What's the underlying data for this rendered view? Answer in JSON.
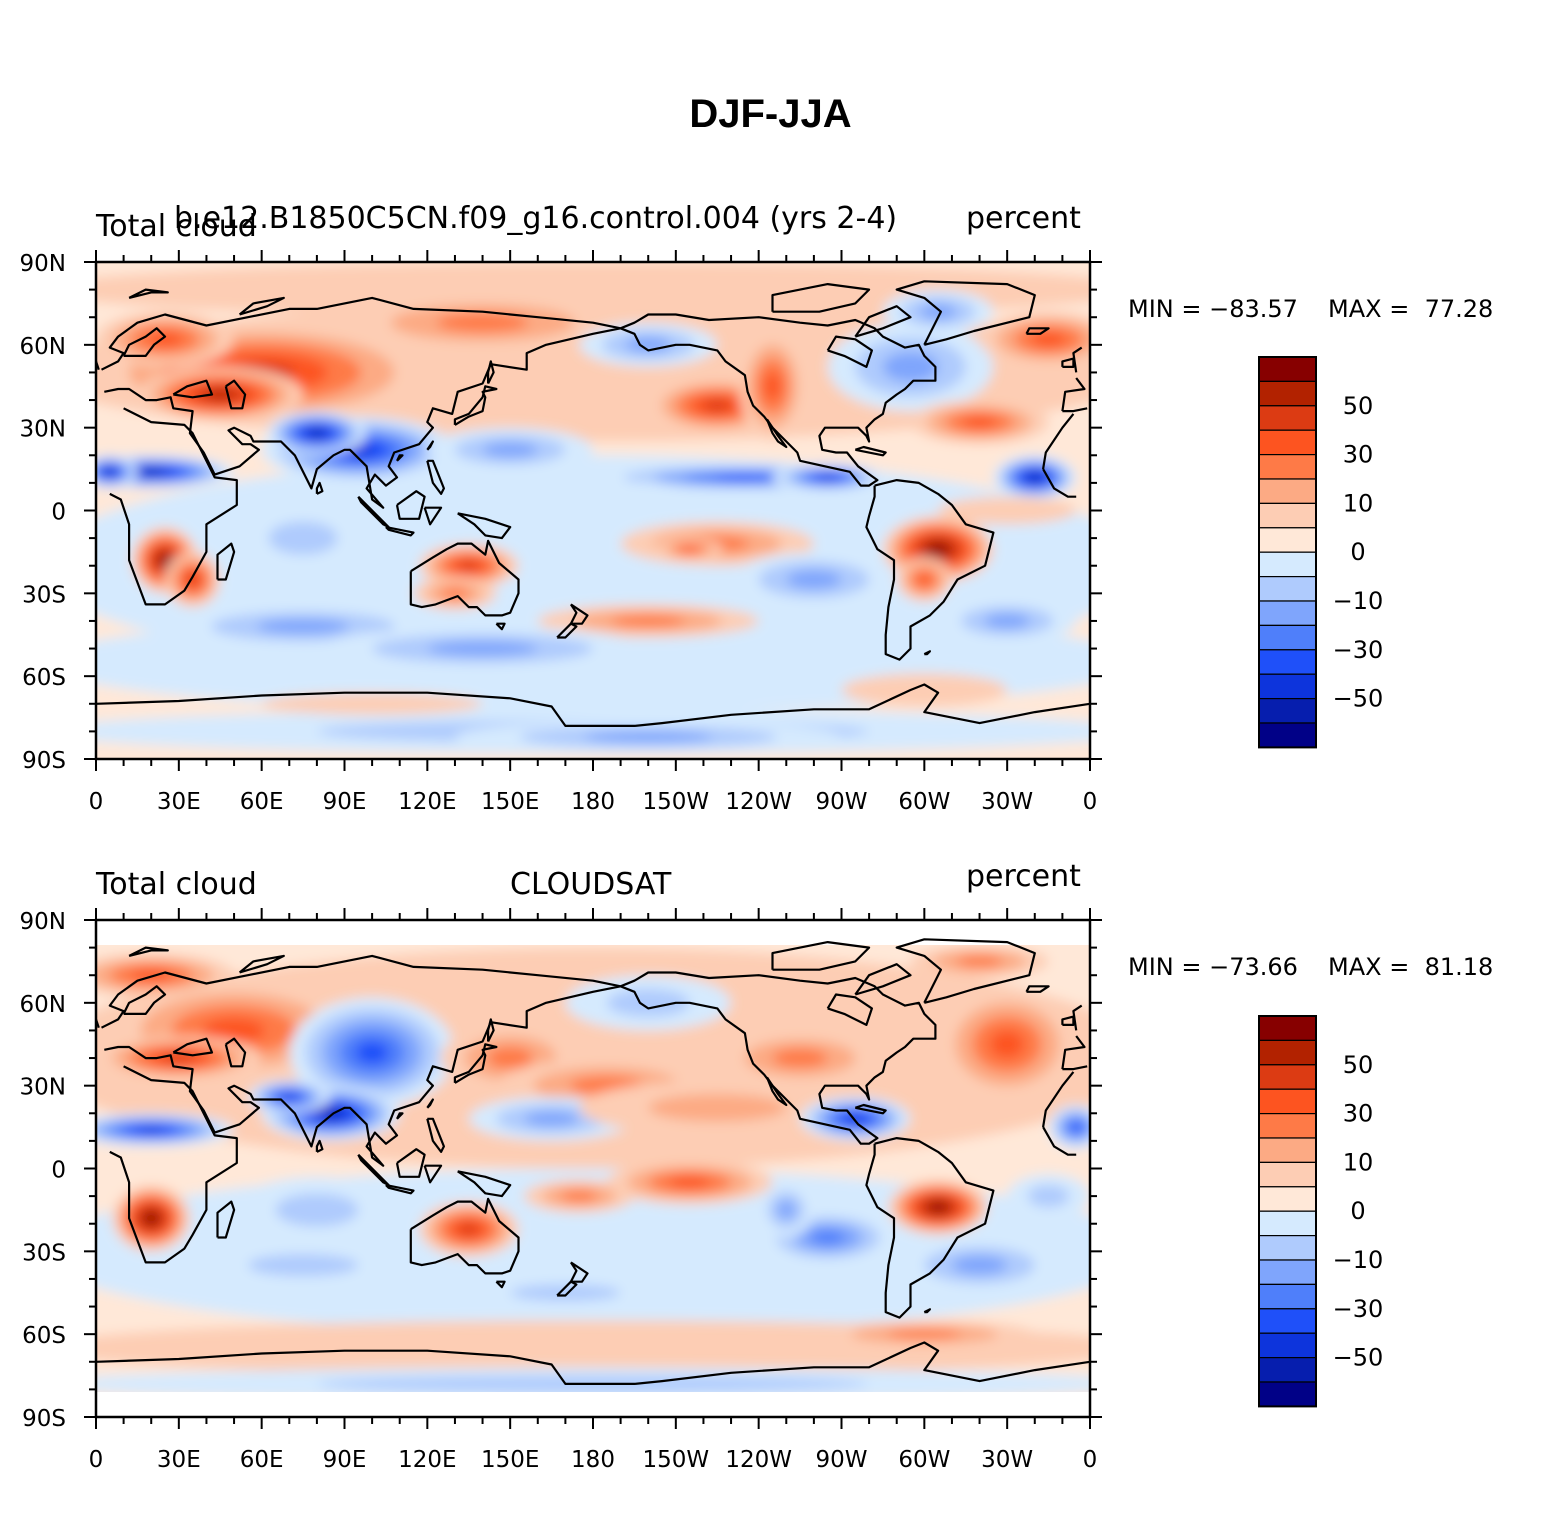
{
  "title": "DJF-JJA",
  "panels": [
    {
      "left_label": "Total cloud",
      "center_label": "b.e12.B1850C5CN.f09_g16.control.004 (yrs 2-4)",
      "right_label": "percent",
      "min_label": "MIN = −83.57",
      "max_label": "MAX =  77.28",
      "min_value": -83.57,
      "max_value": 77.28
    },
    {
      "left_label": "Total cloud",
      "center_label": "CLOUDSAT",
      "right_label": "percent",
      "min_label": "MIN = −73.66",
      "max_label": "MAX =  81.18",
      "min_value": -73.66,
      "max_value": 81.18
    }
  ],
  "map": {
    "projection": "cylindrical-equidistant",
    "lon_range": [
      0,
      360
    ],
    "lat_range": [
      -90,
      90
    ],
    "lon_ticks": [
      {
        "lon": 0,
        "label": "0"
      },
      {
        "lon": 30,
        "label": "30E"
      },
      {
        "lon": 60,
        "label": "60E"
      },
      {
        "lon": 90,
        "label": "90E"
      },
      {
        "lon": 120,
        "label": "120E"
      },
      {
        "lon": 150,
        "label": "150E"
      },
      {
        "lon": 180,
        "label": "180"
      },
      {
        "lon": 210,
        "label": "150W"
      },
      {
        "lon": 240,
        "label": "120W"
      },
      {
        "lon": 270,
        "label": "90W"
      },
      {
        "lon": 300,
        "label": "60W"
      },
      {
        "lon": 330,
        "label": "30W"
      },
      {
        "lon": 360,
        "label": "0"
      }
    ],
    "lat_ticks": [
      {
        "lat": 90,
        "label": "90N"
      },
      {
        "lat": 60,
        "label": "60N"
      },
      {
        "lat": 30,
        "label": "30N"
      },
      {
        "lat": 0,
        "label": "0"
      },
      {
        "lat": -30,
        "label": "30S"
      },
      {
        "lat": -60,
        "label": "60S"
      },
      {
        "lat": -90,
        "label": "90S"
      }
    ]
  },
  "colorbar": {
    "colors": [
      "#870000",
      "#b22200",
      "#dc3b13",
      "#fd5420",
      "#fe7a47",
      "#fcaa84",
      "#fdcdb4",
      "#ffe8d8",
      "#d5eafe",
      "#afcbfd",
      "#7fa5fc",
      "#4f7ffa",
      "#1f50f9",
      "#0d34dc",
      "#061eae",
      "#010187"
    ],
    "tick_labels": [
      "50",
      "30",
      "10",
      "0",
      "−10",
      "−30",
      "−50"
    ]
  }
}
